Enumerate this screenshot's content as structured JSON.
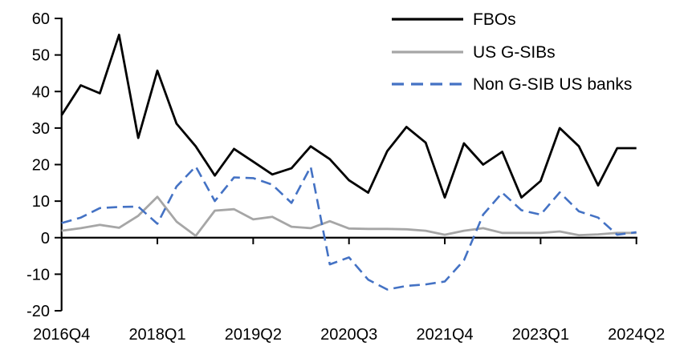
{
  "chart_data": {
    "type": "line",
    "title": "",
    "xlabel": "",
    "ylabel": "",
    "ylim": [
      -20,
      60
    ],
    "grid": "off",
    "legend_position": "top-right",
    "x_categories": [
      "2016Q4",
      "2017Q1",
      "2017Q2",
      "2017Q3",
      "2017Q4",
      "2018Q1",
      "2018Q2",
      "2018Q3",
      "2018Q4",
      "2019Q1",
      "2019Q2",
      "2019Q3",
      "2019Q4",
      "2020Q1",
      "2020Q2",
      "2020Q3",
      "2020Q4",
      "2021Q1",
      "2021Q2",
      "2021Q3",
      "2021Q4",
      "2022Q1",
      "2022Q2",
      "2022Q3",
      "2022Q4",
      "2023Q1",
      "2023Q2",
      "2023Q3",
      "2023Q4",
      "2024Q1",
      "2024Q2"
    ],
    "x_tick_labels": [
      "2016Q4",
      "2018Q1",
      "2019Q2",
      "2020Q3",
      "2021Q4",
      "2023Q1",
      "2024Q2"
    ],
    "x_tick_indices": [
      0,
      5,
      10,
      15,
      20,
      25,
      30
    ],
    "y_ticks": [
      -20,
      -10,
      0,
      10,
      20,
      30,
      40,
      50,
      60
    ],
    "series": [
      {
        "name": "FBOs",
        "color": "#000000",
        "style": "solid",
        "values": [
          33.5,
          41.7,
          39.5,
          55.5,
          27.3,
          45.7,
          31.2,
          25.0,
          17.0,
          24.3,
          20.8,
          17.3,
          19.0,
          25.0,
          21.5,
          15.7,
          12.3,
          23.7,
          30.3,
          26.0,
          11.0,
          25.8,
          20.0,
          23.5,
          11.0,
          15.5,
          30.0,
          25.0,
          14.3,
          24.5,
          24.5
        ]
      },
      {
        "name": "US G-SIBs",
        "color": "#A6A6A6",
        "style": "solid",
        "values": [
          1.9,
          2.6,
          3.5,
          2.7,
          6.0,
          11.2,
          4.4,
          0.5,
          7.4,
          7.8,
          5.0,
          5.7,
          3.0,
          2.6,
          4.5,
          2.5,
          2.4,
          2.4,
          2.3,
          1.9,
          0.8,
          1.9,
          2.6,
          1.3,
          1.3,
          1.3,
          1.7,
          0.7,
          0.9,
          1.3,
          1.3
        ]
      },
      {
        "name": "Non G-SIB US banks",
        "color": "#4472C4",
        "style": "dashed",
        "values": [
          4.0,
          5.5,
          8.1,
          8.4,
          8.5,
          3.8,
          14.0,
          19.5,
          10.0,
          16.5,
          16.3,
          14.5,
          9.5,
          19.4,
          -7.3,
          -5.4,
          -11.5,
          -14.2,
          -13.2,
          -12.8,
          -12.0,
          -6.2,
          6.3,
          12.3,
          7.5,
          6.3,
          12.4,
          7.2,
          5.5,
          0.8,
          1.5
        ]
      }
    ]
  }
}
